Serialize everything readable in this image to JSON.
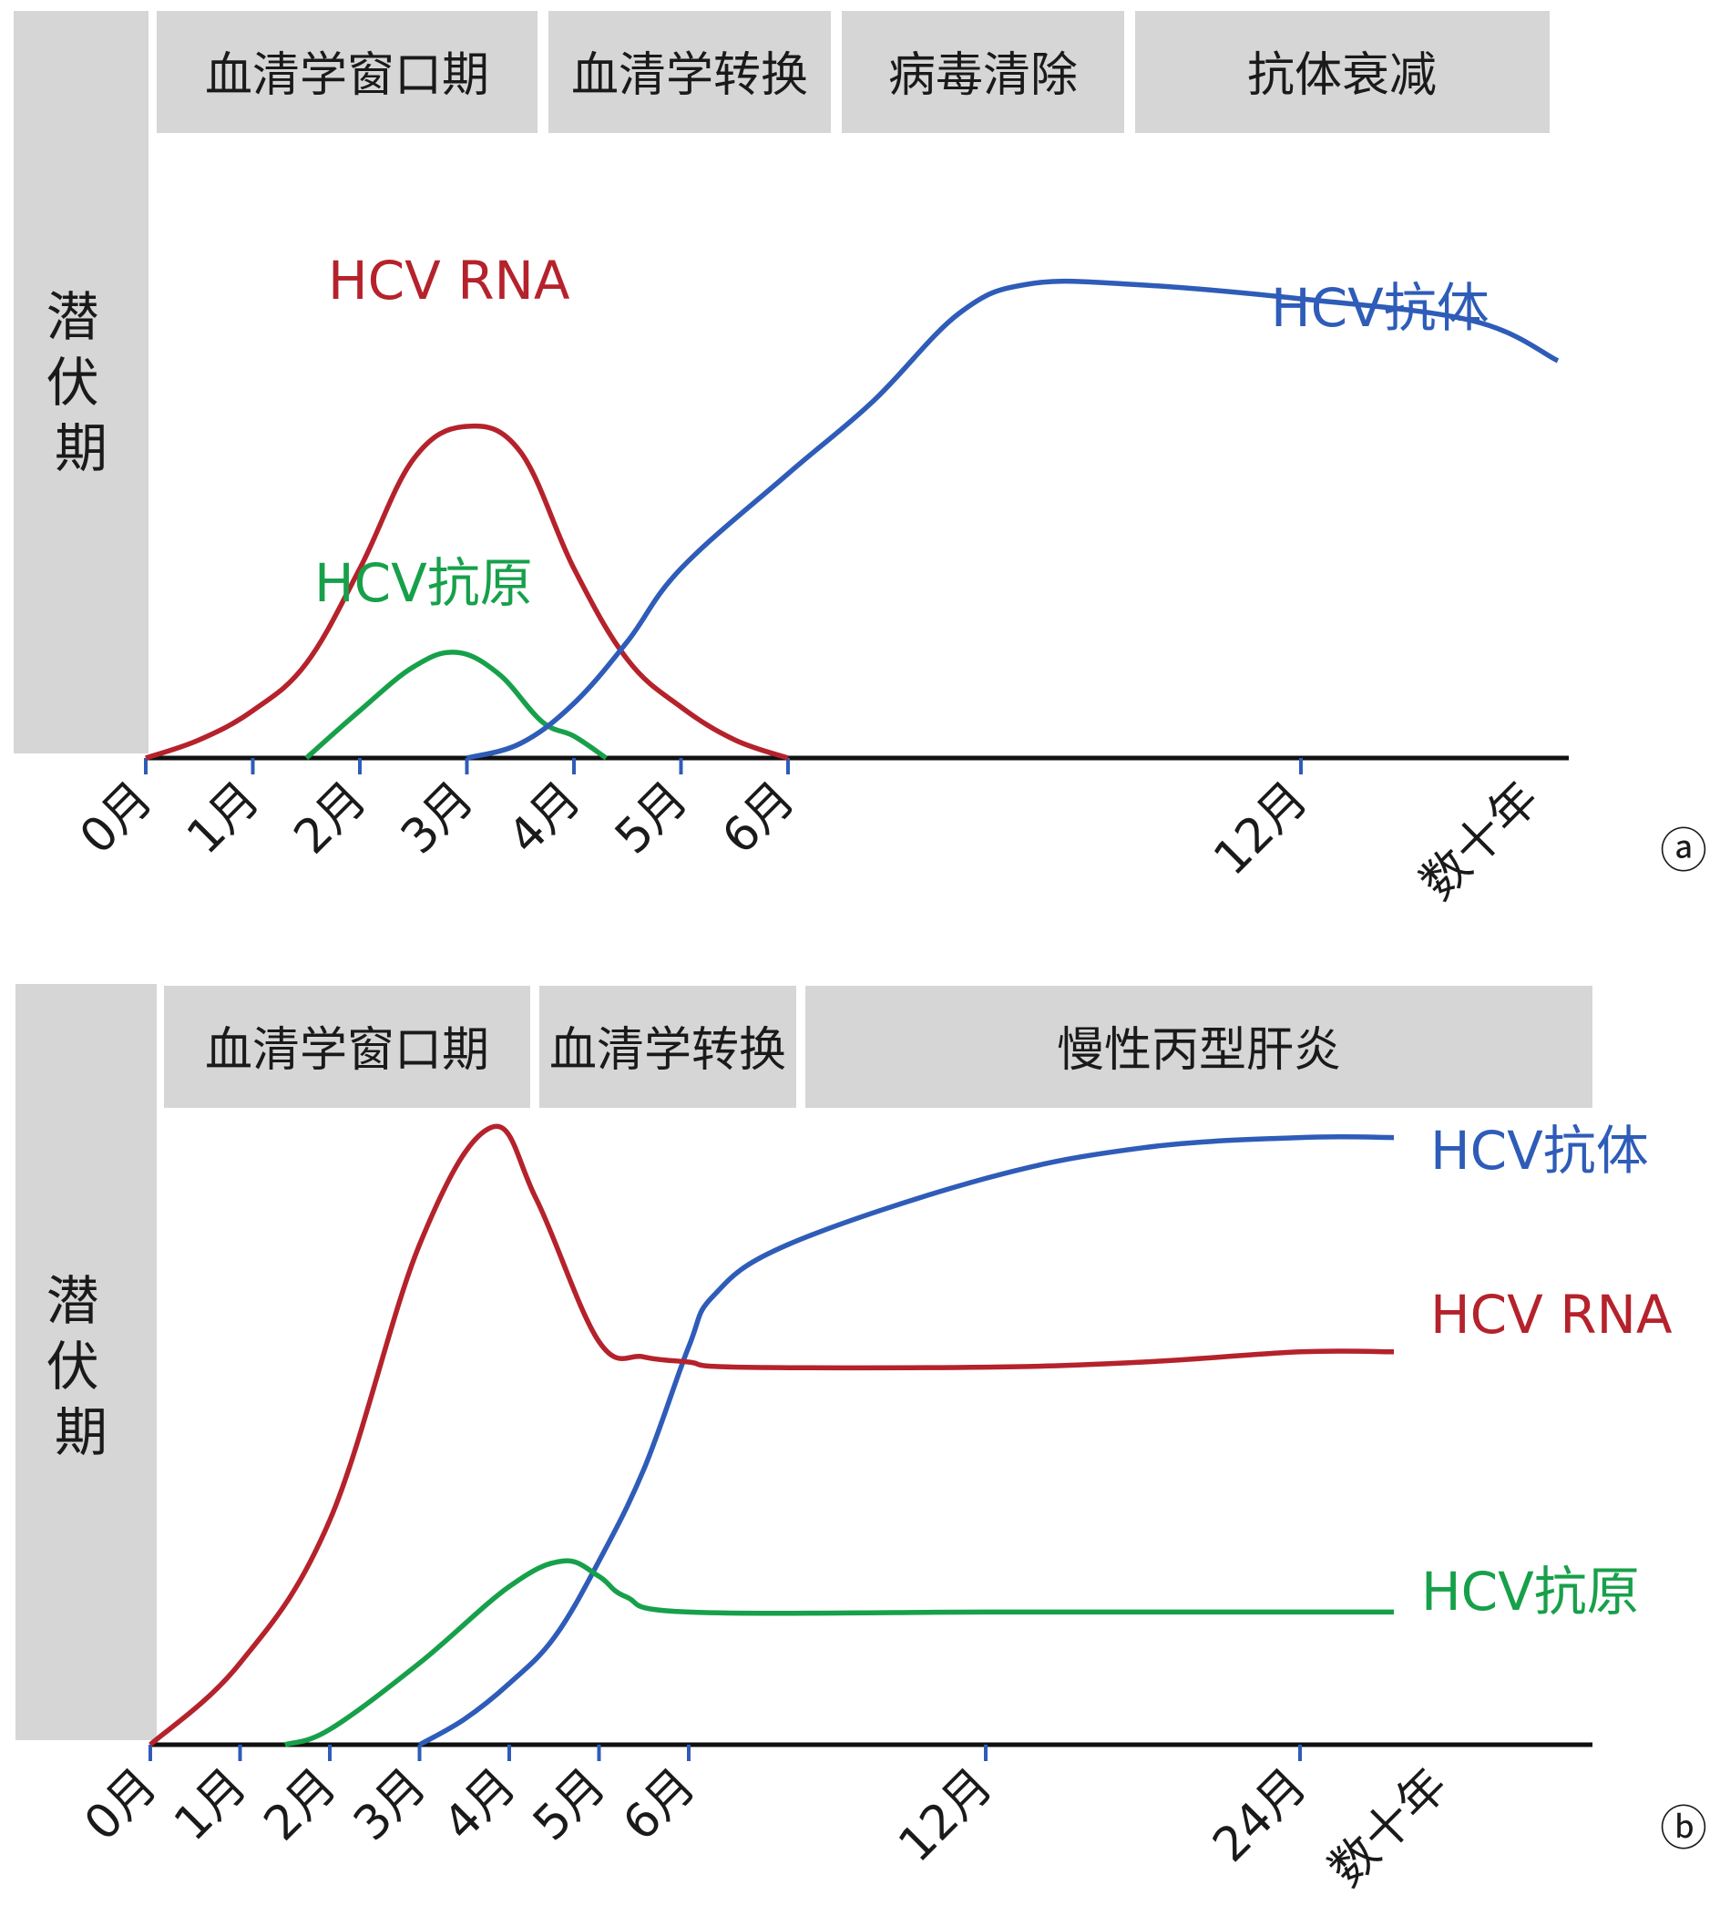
{
  "chart_data": [
    {
      "type": "line",
      "panel_label": "ⓐ",
      "latent_label": "潜伏期",
      "phases": [
        "血清学窗口期",
        "血清学转换",
        "病毒清除",
        "抗体衰减"
      ],
      "x_ticks": [
        "0月",
        "1月",
        "2月",
        "3月",
        "4月",
        "5月",
        "6月",
        "12月",
        "数十年"
      ],
      "y_axis": "relative level (no scale shown)",
      "series": [
        {
          "name": "HCV RNA",
          "color": "#b5222b",
          "points": [
            [
              0,
              0
            ],
            [
              0.5,
              0.05
            ],
            [
              1,
              0.13
            ],
            [
              1.5,
              0.26
            ],
            [
              2,
              0.52
            ],
            [
              2.5,
              0.82
            ],
            [
              3,
              0.91
            ],
            [
              3.5,
              0.84
            ],
            [
              4,
              0.52
            ],
            [
              4.5,
              0.27
            ],
            [
              5,
              0.14
            ],
            [
              5.5,
              0.05
            ],
            [
              6,
              0
            ]
          ]
        },
        {
          "name": "HCV抗原",
          "color": "#17a04a",
          "points": [
            [
              1.5,
              0
            ],
            [
              2,
              0.13
            ],
            [
              2.5,
              0.25
            ],
            [
              2.9,
              0.29
            ],
            [
              3.3,
              0.23
            ],
            [
              3.7,
              0.1
            ],
            [
              4,
              0.06
            ],
            [
              4.3,
              0
            ]
          ]
        },
        {
          "name": "HCV抗体",
          "color": "#2e5cb8",
          "points": [
            [
              3,
              0
            ],
            [
              3.5,
              0.04
            ],
            [
              4,
              0.15
            ],
            [
              4.5,
              0.32
            ],
            [
              5,
              0.52
            ],
            [
              6,
              0.78
            ],
            [
              7,
              0.98
            ],
            [
              8,
              1.22
            ],
            [
              8.8,
              1.3
            ],
            [
              10,
              1.3
            ],
            [
              12,
              1.26
            ],
            [
              14,
              1.2
            ],
            [
              15,
              1.09
            ]
          ]
        }
      ]
    },
    {
      "type": "line",
      "panel_label": "ⓑ",
      "latent_label": "潜伏期",
      "phases": [
        "血清学窗口期",
        "血清学转换",
        "慢性丙型肝炎"
      ],
      "x_ticks": [
        "0月",
        "1月",
        "2月",
        "3月",
        "4月",
        "5月",
        "6月",
        "12月",
        "24月",
        "数十年"
      ],
      "y_axis": "relative level (no scale shown)",
      "series": [
        {
          "name": "HCV抗体",
          "color": "#2e5cb8",
          "points": [
            [
              3,
              0
            ],
            [
              3.5,
              0.05
            ],
            [
              4,
              0.12
            ],
            [
              4.5,
              0.21
            ],
            [
              5,
              0.36
            ],
            [
              5.5,
              0.54
            ],
            [
              6,
              0.78
            ],
            [
              6.5,
              0.88
            ],
            [
              8,
              0.98
            ],
            [
              12,
              1.11
            ],
            [
              18,
              1.17
            ],
            [
              24,
              1.19
            ],
            [
              27,
              1.19
            ]
          ]
        },
        {
          "name": "HCV RNA",
          "color": "#b5222b",
          "points": [
            [
              0,
              0
            ],
            [
              1,
              0.16
            ],
            [
              2,
              0.44
            ],
            [
              3,
              0.98
            ],
            [
              3.8,
              1.21
            ],
            [
              4.3,
              1.07
            ],
            [
              5,
              0.79
            ],
            [
              5.5,
              0.76
            ],
            [
              6,
              0.75
            ],
            [
              7,
              0.74
            ],
            [
              12,
              0.74
            ],
            [
              18,
              0.75
            ],
            [
              24,
              0.77
            ],
            [
              27,
              0.77
            ]
          ]
        },
        {
          "name": "HCV抗原",
          "color": "#17a04a",
          "points": [
            [
              1.5,
              0
            ],
            [
              2,
              0.03
            ],
            [
              3,
              0.16
            ],
            [
              4,
              0.31
            ],
            [
              4.6,
              0.36
            ],
            [
              5,
              0.33
            ],
            [
              5.3,
              0.29
            ],
            [
              6,
              0.26
            ],
            [
              12,
              0.26
            ],
            [
              18,
              0.26
            ],
            [
              27,
              0.26
            ]
          ]
        }
      ]
    }
  ]
}
